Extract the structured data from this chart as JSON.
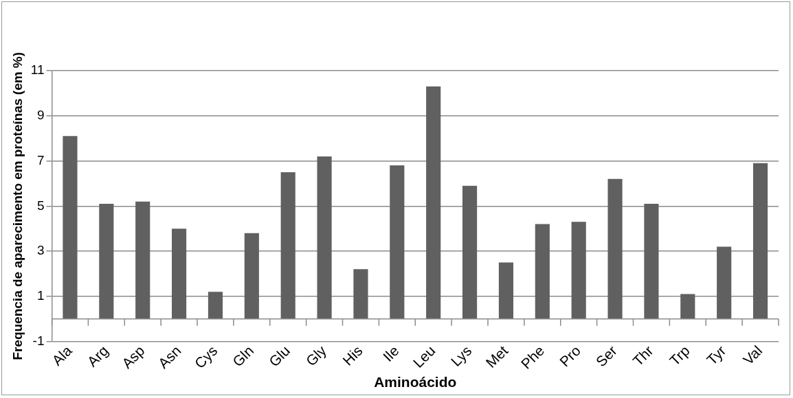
{
  "chart_data": {
    "type": "bar",
    "xlabel": "Aminoácido",
    "ylabel": "Frequencia de aparecimento em proteínas (em %)",
    "categories": [
      "Ala",
      "Arg",
      "Asp",
      "Asn",
      "Cys",
      "Gln",
      "Glu",
      "Gly",
      "His",
      "Ile",
      "Leu",
      "Lys",
      "Met",
      "Phe",
      "Pro",
      "Ser",
      "Thr",
      "Trp",
      "Tyr",
      "Val"
    ],
    "values": [
      8.1,
      5.1,
      5.2,
      4.0,
      1.2,
      3.8,
      6.5,
      7.2,
      2.2,
      6.8,
      10.3,
      5.9,
      2.5,
      4.2,
      4.3,
      6.2,
      5.1,
      1.1,
      3.2,
      6.9
    ],
    "color": "#606060",
    "ylim": [
      -1,
      11
    ],
    "yticks": [
      -1,
      1,
      3,
      5,
      7,
      9,
      11
    ],
    "grid": "y",
    "legend": false
  }
}
